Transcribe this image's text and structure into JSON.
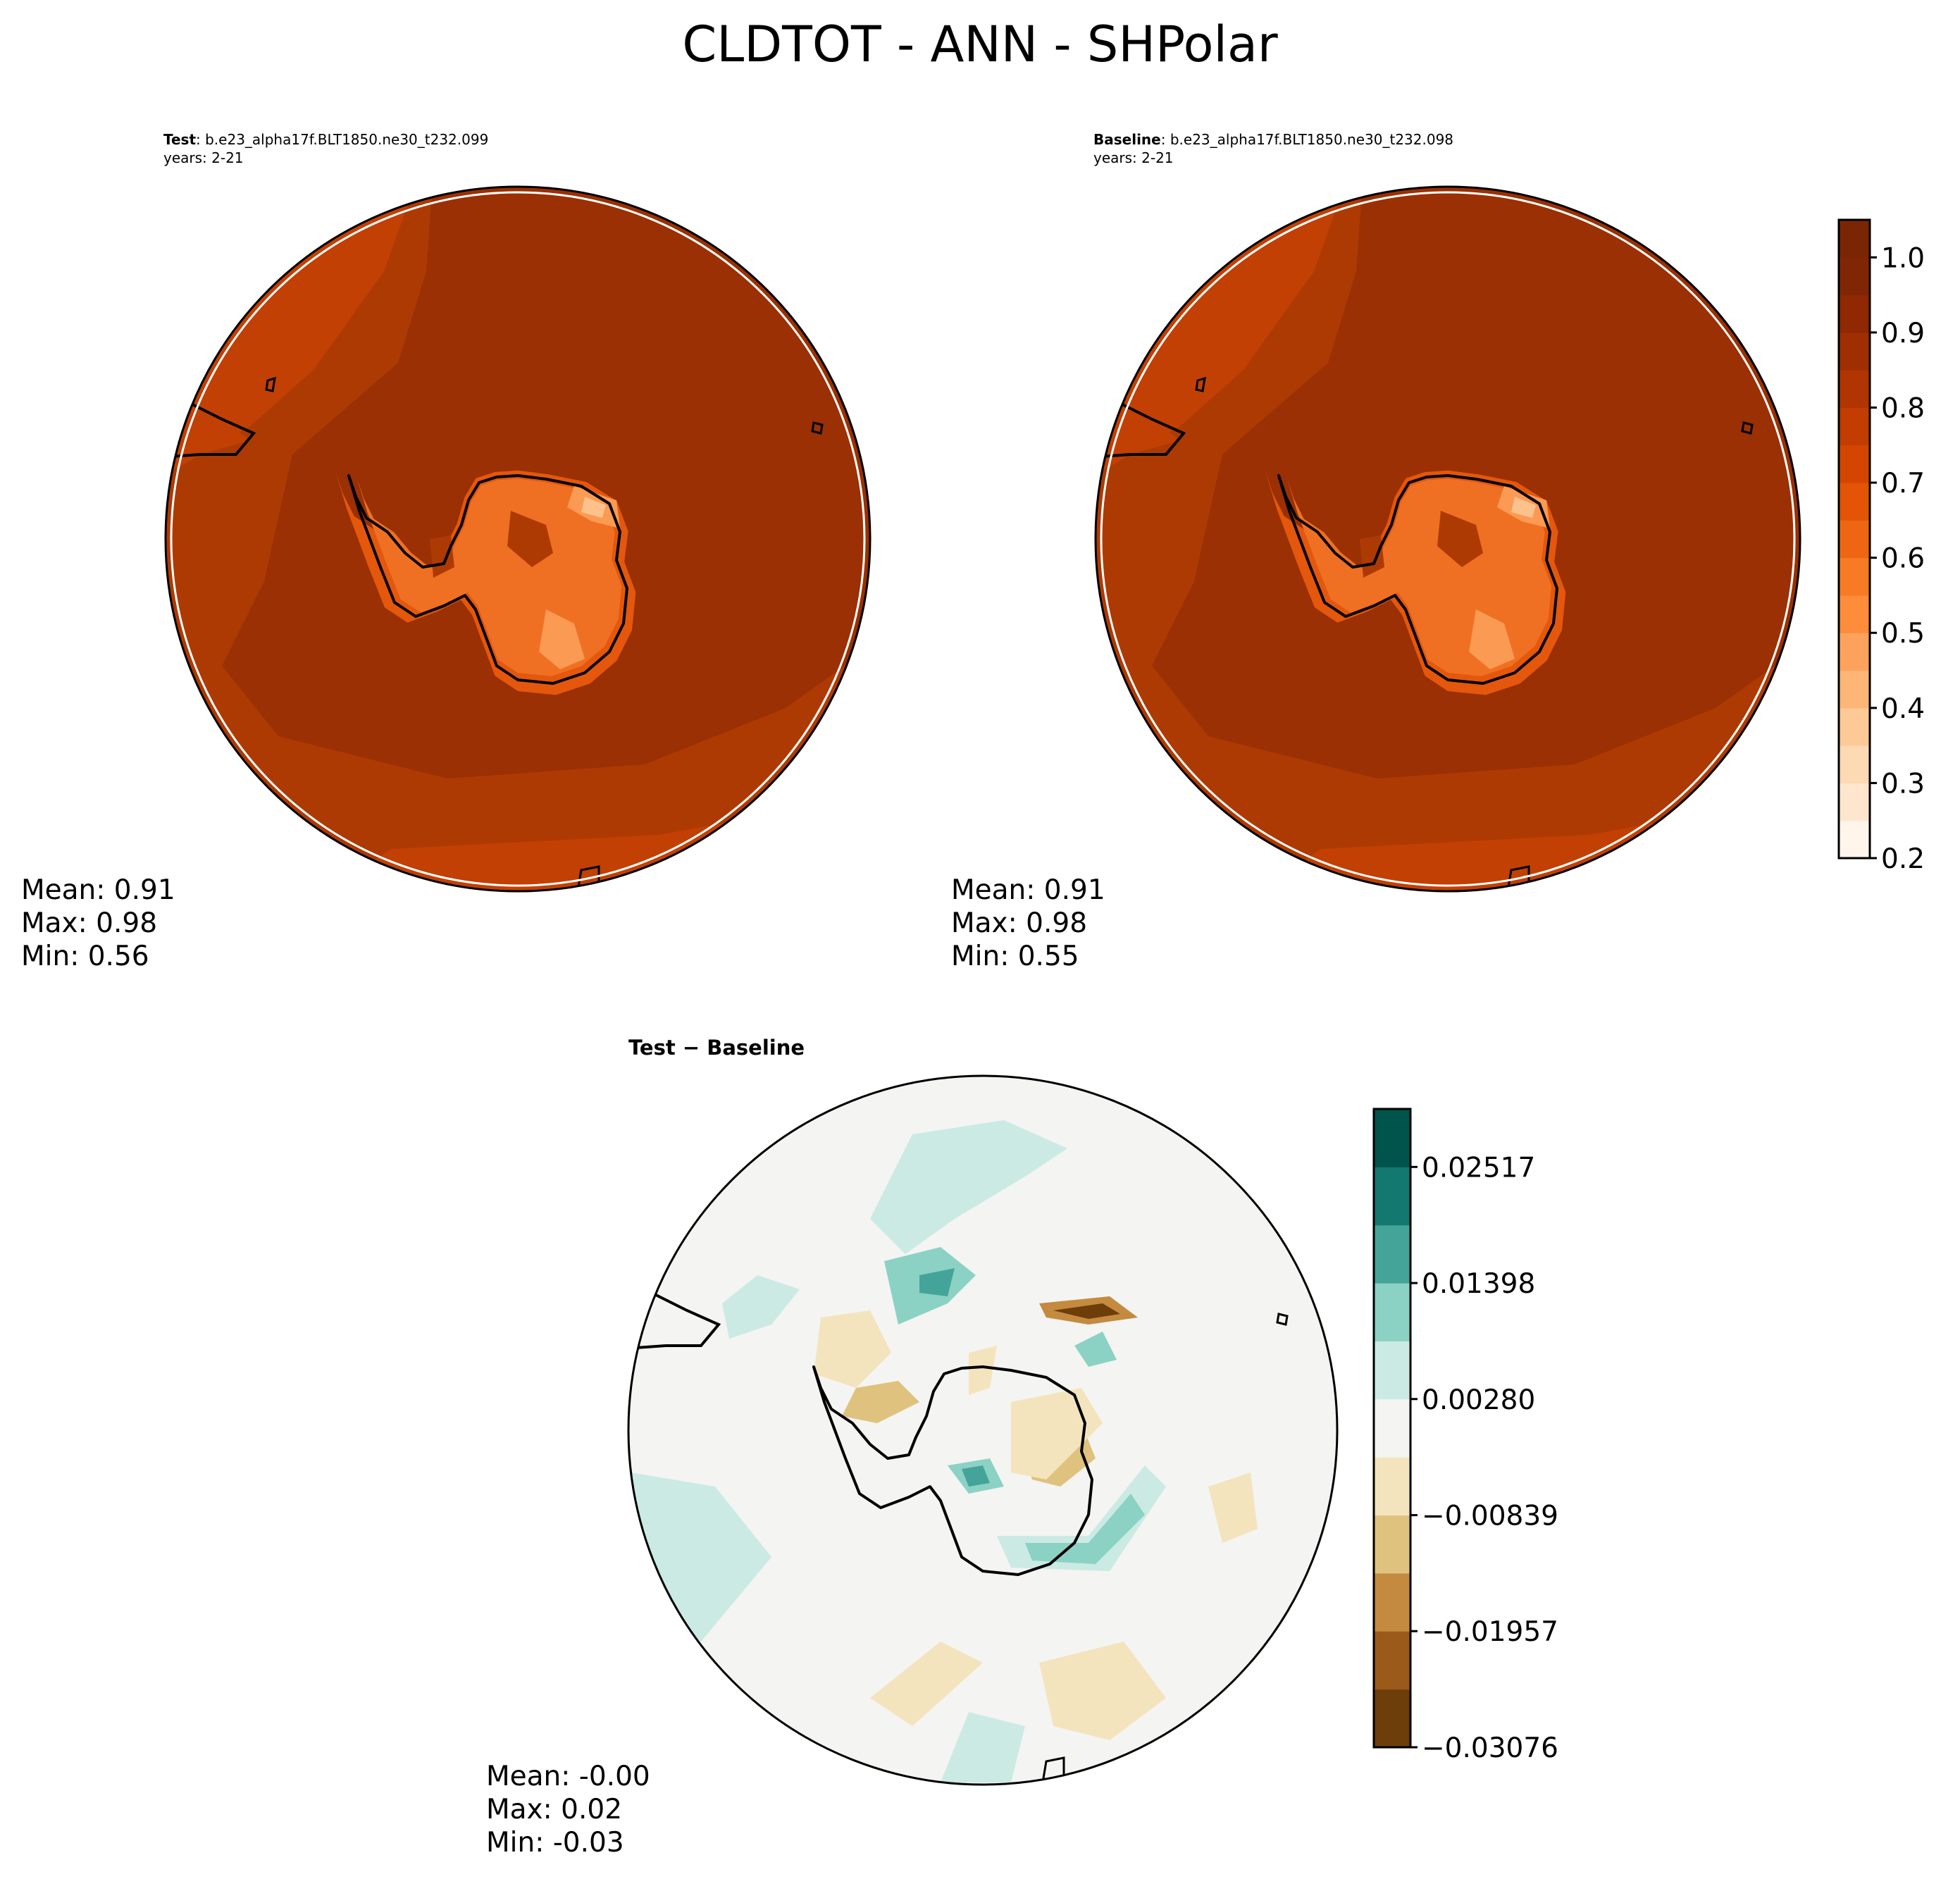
{
  "figure": {
    "title": "CLDTOT - ANN - SHPolar"
  },
  "panels": {
    "test": {
      "label_bold": "Test",
      "label_rest": ": b.e23_alpha17f.BLT1850.ne30_t232.099",
      "years": "years: 2-21",
      "stats": {
        "mean": "Mean:  0.91",
        "max": "Max:  0.98",
        "min": "Min:  0.56"
      }
    },
    "baseline": {
      "label_bold": "Baseline",
      "label_rest": ": b.e23_alpha17f.BLT1850.ne30_t232.098",
      "years": "years: 2-21",
      "stats": {
        "mean": "Mean:  0.91",
        "max": "Max:  0.98",
        "min": "Min:  0.55"
      }
    },
    "difference": {
      "title": "Test − Baseline",
      "stats": {
        "mean": "Mean: -0.00",
        "max": "Max:  0.02",
        "min": "Min: -0.03"
      }
    }
  },
  "colorbars": {
    "main": {
      "ticks": [
        "0.2",
        "0.3",
        "0.4",
        "0.5",
        "0.6",
        "0.7",
        "0.8",
        "0.9",
        "1.0"
      ],
      "levels": [
        0.2,
        0.25,
        0.3,
        0.35,
        0.4,
        0.45,
        0.5,
        0.55,
        0.6,
        0.65,
        0.7,
        0.75,
        0.8,
        0.85,
        0.9,
        0.95,
        1.0,
        1.05
      ],
      "colors": [
        "#fff5eb",
        "#fee6ce",
        "#fdd9b4",
        "#fdc997",
        "#fdb678",
        "#fda25d",
        "#fd8c3b",
        "#f87a24",
        "#ef6612",
        "#e35407",
        "#d44501",
        "#c33c02",
        "#b13503",
        "#a02e03",
        "#8f2803",
        "#7f2704",
        "#7a2604"
      ]
    },
    "diff": {
      "ticks": [
        "0.02517",
        "0.01398",
        "0.00280",
        "−0.00839",
        "−0.01957",
        "−0.03076"
      ],
      "tick_values": [
        0.02517,
        0.01398,
        0.0028,
        -0.00839,
        -0.01957,
        -0.03076
      ],
      "levels": [
        -0.03076,
        -0.02517,
        -0.01957,
        -0.01398,
        -0.00839,
        -0.0028,
        0.0028,
        0.00839,
        0.01398,
        0.01957,
        0.02517,
        0.03076
      ],
      "colors": [
        "#6d3d0a",
        "#9b5a1a",
        "#c48a3f",
        "#dfc27d",
        "#f4e4be",
        "#f4f4f2",
        "#cbeae4",
        "#8bd2c4",
        "#45a49a",
        "#137870",
        "#01544c"
      ]
    }
  },
  "map_colors": {
    "ocean_dark": "#9a3004",
    "ocean_mid": "#ae3a03",
    "ocean_light": "#c24003",
    "ice_outer": "#e4570c",
    "ice_mid": "#f07023",
    "ice_light": "#fb9a52",
    "ice_peak": "#fdc18c",
    "coast": "#000000",
    "diff_bg": "#f4f4f2"
  }
}
